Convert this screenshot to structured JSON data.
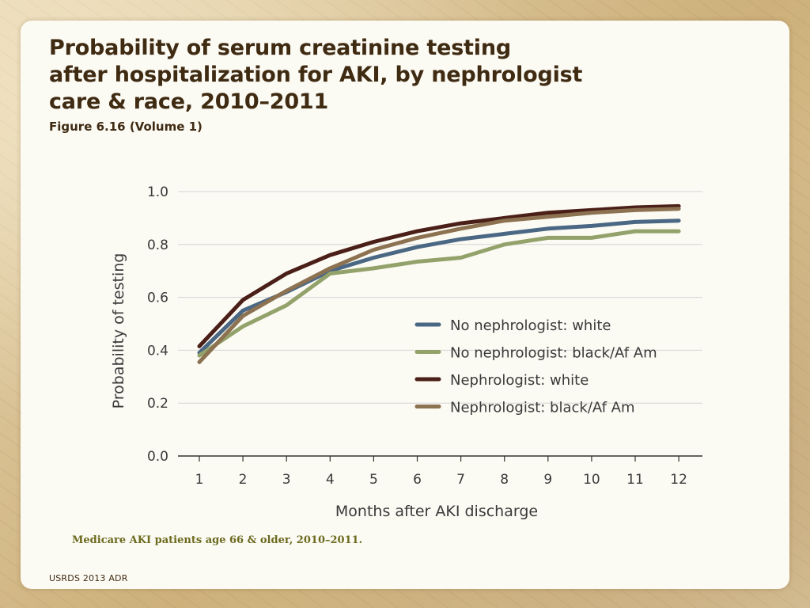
{
  "slide": {
    "title_lines": [
      "Probability of serum creatinine testing",
      "after hospitalization for AKI, by nephrologist",
      "care & race, 2010–2011"
    ],
    "figure_ref": "Figure 6.16 (Volume 1)",
    "caption": "Medicare AKI patients age 66 & older, 2010–2011.",
    "footer": "USRDS 2013 ADR"
  },
  "chart_data": {
    "type": "line",
    "title": "",
    "xlabel": "Months after AKI discharge",
    "ylabel": "Probability of testing",
    "x": [
      1,
      2,
      3,
      4,
      5,
      6,
      7,
      8,
      9,
      10,
      11,
      12
    ],
    "x_tick_labels": [
      "1",
      "2",
      "3",
      "4",
      "5",
      "6",
      "7",
      "8",
      "9",
      "10",
      "11",
      "12"
    ],
    "ylim": [
      0,
      1.0
    ],
    "y_ticks": [
      0.0,
      0.2,
      0.4,
      0.6,
      0.8,
      1.0
    ],
    "y_tick_labels": [
      "0.0",
      "0.2",
      "0.4",
      "0.6",
      "0.8",
      "1.0"
    ],
    "grid": "horizontal",
    "legend_position": "bottom-right",
    "series": [
      {
        "name": "No nephrologist: white",
        "color": "#4a6783",
        "values": [
          0.39,
          0.55,
          0.62,
          0.7,
          0.75,
          0.79,
          0.82,
          0.84,
          0.86,
          0.87,
          0.885,
          0.89
        ]
      },
      {
        "name": "No nephrologist: black/Af Am",
        "color": "#93a26a",
        "values": [
          0.38,
          0.49,
          0.57,
          0.69,
          0.71,
          0.735,
          0.75,
          0.8,
          0.825,
          0.825,
          0.85,
          0.85
        ]
      },
      {
        "name": "Nephrologist: white",
        "color": "#4a1f17",
        "values": [
          0.415,
          0.59,
          0.69,
          0.76,
          0.81,
          0.85,
          0.88,
          0.9,
          0.92,
          0.93,
          0.94,
          0.945
        ]
      },
      {
        "name": "Nephrologist: black/Af Am",
        "color": "#8c7251",
        "values": [
          0.355,
          0.53,
          0.625,
          0.71,
          0.78,
          0.825,
          0.86,
          0.89,
          0.905,
          0.92,
          0.93,
          0.935
        ]
      }
    ]
  }
}
